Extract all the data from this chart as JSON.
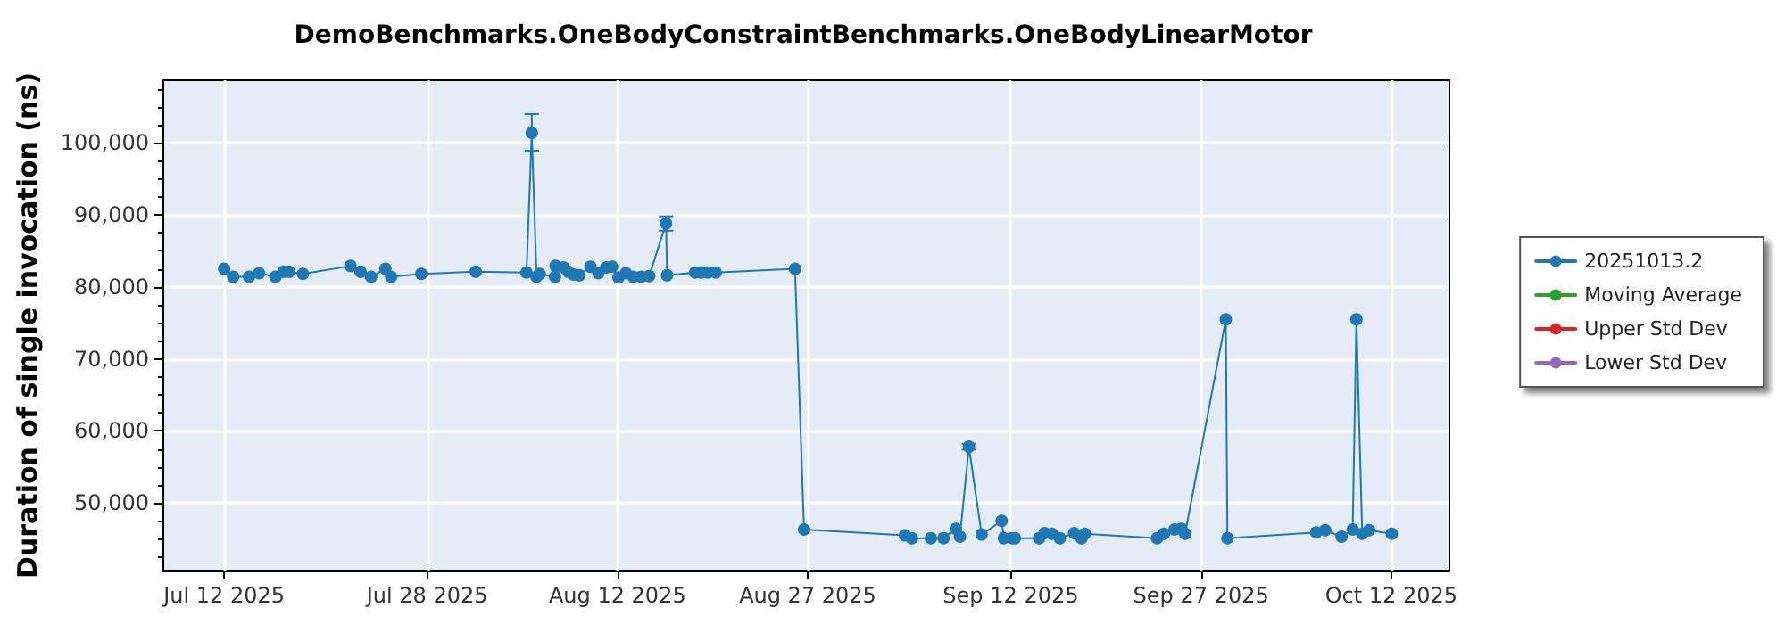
{
  "chart_data": {
    "type": "line",
    "title": "DemoBenchmarks.OneBodyConstraintBenchmarks.OneBodyLinearMotor",
    "ylabel": "Duration of single invocation (ns)",
    "x": [
      "2025-07-12T00:00",
      "2025-07-12T17:00",
      "2025-07-13T23:00",
      "2025-07-14T18:00",
      "2025-07-16T01:00",
      "2025-07-16T16:00",
      "2025-07-17T03:00",
      "2025-07-18T05:00",
      "2025-07-21T23:00",
      "2025-07-22T18:00",
      "2025-07-23T14:00",
      "2025-07-24T17:00",
      "2025-07-25T04:00",
      "2025-07-27T13:00",
      "2025-07-31T20:00",
      "2025-08-04T20:00",
      "2025-08-05T06:00",
      "2025-08-05T15:00",
      "2025-08-05T21:00",
      "2025-08-07T02:00",
      "2025-08-07T03:00",
      "2025-08-07T18:00",
      "2025-08-08T03:00",
      "2025-08-08T13:00",
      "2025-08-09T00:00",
      "2025-08-09T21:00",
      "2025-08-10T12:00",
      "2025-08-11T03:00",
      "2025-08-11T14:00",
      "2025-08-12T02:00",
      "2025-08-12T16:00",
      "2025-08-13T06:00",
      "2025-08-13T21:00",
      "2025-08-14T12:00",
      "2025-08-15T20:00",
      "2025-08-15T22:00",
      "2025-08-18T03:00",
      "2025-08-18T14:00",
      "2025-08-19T03:00",
      "2025-08-19T18:00",
      "2025-08-26T00:00",
      "2025-08-26T17:00",
      "2025-09-03T16:00",
      "2025-09-04T05:00",
      "2025-09-05T17:00",
      "2025-09-06T17:00",
      "2025-09-07T16:00",
      "2025-09-08T00:00",
      "2025-09-08T17:00",
      "2025-09-09T17:00",
      "2025-09-11T07:00",
      "2025-09-11T11:00",
      "2025-09-12T03:00",
      "2025-09-12T08:00",
      "2025-09-14T06:00",
      "2025-09-14T16:00",
      "2025-09-15T06:00",
      "2025-09-15T21:00",
      "2025-09-17T00:00",
      "2025-09-17T14:00",
      "2025-09-17T20:00",
      "2025-09-23T13:00",
      "2025-09-24T02:00",
      "2025-09-24T22:00",
      "2025-09-25T11:00",
      "2025-09-25T18:00",
      "2025-09-28T23:00",
      "2025-09-29T02:00",
      "2025-10-06T02:00",
      "2025-10-06T19:00",
      "2025-10-08T02:00",
      "2025-10-08T23:00",
      "2025-10-09T06:00",
      "2025-10-09T17:00",
      "2025-10-10T06:00",
      "2025-10-12T01:00"
    ],
    "series": [
      {
        "name": "20251013.2",
        "color": "#1f77b4",
        "values": [
          82500,
          81400,
          81400,
          81900,
          81400,
          82100,
          82100,
          81800,
          82900,
          82100,
          81400,
          82500,
          81400,
          81800,
          82100,
          82000,
          101400,
          81400,
          81800,
          81400,
          82900,
          82700,
          82100,
          81700,
          81600,
          82800,
          81900,
          82700,
          82800,
          81300,
          81900,
          81400,
          81400,
          81500,
          88800,
          81600,
          82000,
          82000,
          82000,
          82000,
          82500,
          46300,
          45500,
          45100,
          45100,
          45100,
          46400,
          45300,
          57800,
          45600,
          47500,
          45100,
          45100,
          45100,
          45100,
          45800,
          45700,
          45100,
          45800,
          45100,
          45700,
          45100,
          45700,
          46300,
          46400,
          45700,
          75500,
          45100,
          45900,
          46200,
          45300,
          46300,
          75500,
          45700,
          46200,
          45700
        ],
        "errors": [
          null,
          null,
          null,
          null,
          null,
          null,
          null,
          null,
          null,
          null,
          null,
          null,
          null,
          null,
          null,
          null,
          [
            98900,
            104000
          ],
          null,
          null,
          null,
          null,
          null,
          null,
          null,
          null,
          null,
          null,
          null,
          null,
          null,
          null,
          null,
          null,
          null,
          [
            87800,
            89800
          ],
          null,
          null,
          null,
          null,
          null,
          null,
          null,
          null,
          null,
          null,
          null,
          null,
          null,
          [
            57400,
            58200
          ],
          null,
          null,
          null,
          null,
          null,
          null,
          null,
          null,
          null,
          null,
          null,
          null,
          null,
          null,
          null,
          null,
          null,
          null,
          null,
          null,
          null,
          null,
          null,
          null,
          null,
          null,
          null
        ]
      },
      {
        "name": "Moving Average",
        "color": "#2ca02c",
        "values": [
          null,
          null,
          null,
          null,
          null,
          null,
          null,
          null,
          null,
          null,
          null,
          null,
          null,
          null,
          null,
          null,
          null,
          null,
          null,
          null,
          null,
          null,
          null,
          null,
          null,
          null,
          null,
          null,
          null,
          null,
          null,
          null,
          null,
          null,
          null,
          null,
          null,
          null,
          null,
          null,
          null,
          null,
          null,
          null,
          null,
          null,
          null,
          null,
          null,
          null,
          null,
          null,
          null,
          null,
          null,
          null,
          null,
          null,
          null,
          null,
          null,
          null,
          null,
          null,
          null,
          null,
          null,
          null,
          null,
          null,
          null,
          null,
          null,
          null,
          null,
          null
        ]
      },
      {
        "name": "Upper Std Dev",
        "color": "#d62728",
        "values": [
          null,
          null,
          null,
          null,
          null,
          null,
          null,
          null,
          null,
          null,
          null,
          null,
          null,
          null,
          null,
          null,
          null,
          null,
          null,
          null,
          null,
          null,
          null,
          null,
          null,
          null,
          null,
          null,
          null,
          null,
          null,
          null,
          null,
          null,
          null,
          null,
          null,
          null,
          null,
          null,
          null,
          null,
          null,
          null,
          null,
          null,
          null,
          null,
          null,
          null,
          null,
          null,
          null,
          null,
          null,
          null,
          null,
          null,
          null,
          null,
          null,
          null,
          null,
          null,
          null,
          null,
          null,
          null,
          null,
          null,
          null,
          null,
          null,
          null,
          null,
          null
        ]
      },
      {
        "name": "Lower Std Dev",
        "color": "#9467bd",
        "values": [
          null,
          null,
          null,
          null,
          null,
          null,
          null,
          null,
          null,
          null,
          null,
          null,
          null,
          null,
          null,
          null,
          null,
          null,
          null,
          null,
          null,
          null,
          null,
          null,
          null,
          null,
          null,
          null,
          null,
          null,
          null,
          null,
          null,
          null,
          null,
          null,
          null,
          null,
          null,
          null,
          null,
          null,
          null,
          null,
          null,
          null,
          null,
          null,
          null,
          null,
          null,
          null,
          null,
          null,
          null,
          null,
          null,
          null,
          null,
          null,
          null,
          null,
          null,
          null,
          null,
          null,
          null,
          null,
          null,
          null,
          null,
          null,
          null,
          null,
          null,
          null
        ]
      }
    ],
    "xlim": [
      "2025-07-07T05:00",
      "2025-10-16T14:00"
    ],
    "xticks": [
      {
        "value": "2025-07-12T00:00",
        "label": "Jul 12 2025"
      },
      {
        "value": "2025-07-28T00:00",
        "label": "Jul 28 2025"
      },
      {
        "value": "2025-08-12T00:00",
        "label": "Aug 12 2025"
      },
      {
        "value": "2025-08-27T00:00",
        "label": "Aug 27 2025"
      },
      {
        "value": "2025-09-12T00:00",
        "label": "Sep 12 2025"
      },
      {
        "value": "2025-09-27T00:00",
        "label": "Sep 27 2025"
      },
      {
        "value": "2025-10-12T00:00",
        "label": "Oct 12 2025"
      }
    ],
    "ylim": [
      40600,
      108700
    ],
    "yticks": [
      {
        "value": 50000,
        "label": "50,000"
      },
      {
        "value": 60000,
        "label": "60,000"
      },
      {
        "value": 70000,
        "label": "70,000"
      },
      {
        "value": 80000,
        "label": "80,000"
      },
      {
        "value": 90000,
        "label": "90,000"
      },
      {
        "value": 100000,
        "label": "100,000"
      }
    ],
    "grid": true,
    "legend": "right",
    "marker": "circle",
    "line_style": "solid"
  }
}
